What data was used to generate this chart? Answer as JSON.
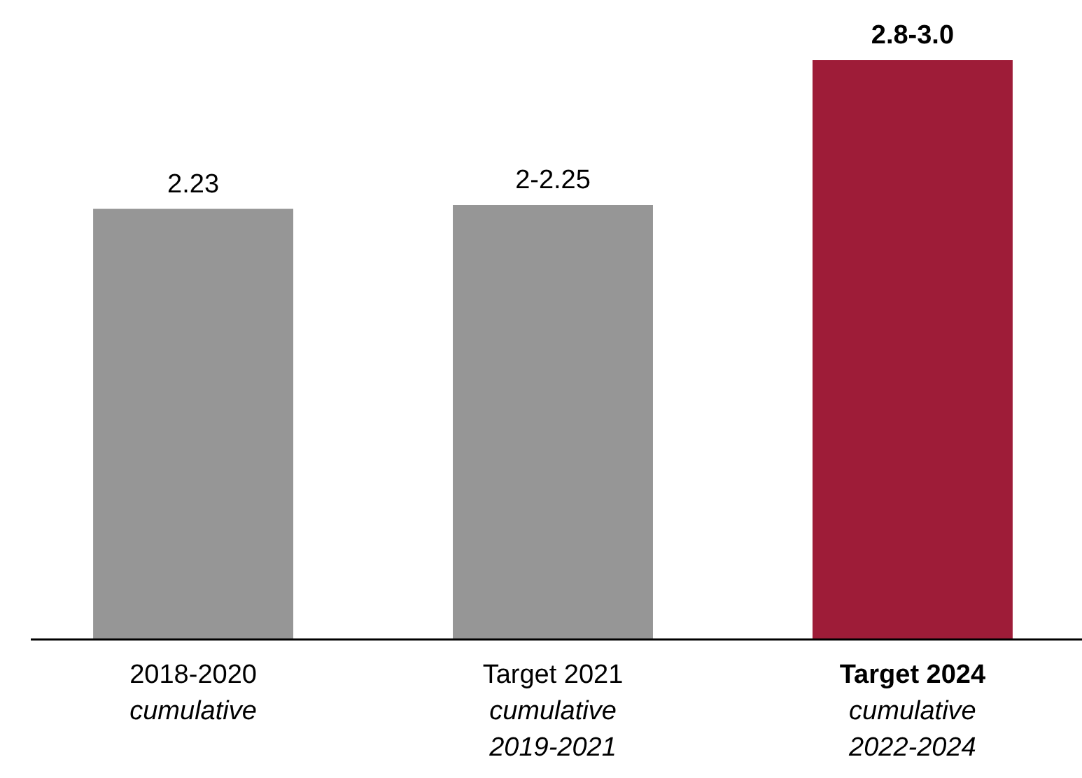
{
  "chart_data": {
    "type": "bar",
    "categories": [
      "2018-2020\ncumulative",
      "Target 2021\ncumulative\n2019-2021",
      "Target 2024\ncumulative\n2022-2024"
    ],
    "values": [
      2.23,
      2.25,
      3.0
    ],
    "colors": [
      "#969696",
      "#969696",
      "#9e1c38"
    ],
    "value_labels": [
      "2.23",
      "2-2.25",
      "2.8-3.0"
    ]
  }
}
